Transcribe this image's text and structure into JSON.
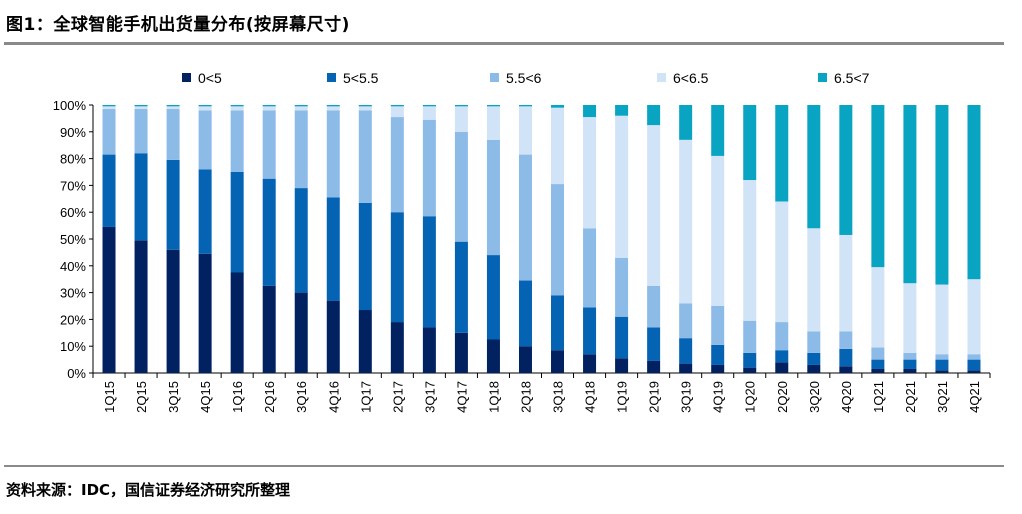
{
  "title": "图1：全球智能手机出货量分布(按屏幕尺寸)",
  "source": "资料来源：IDC，国信证券经济研究所整理",
  "chart_data": {
    "type": "bar",
    "stacked": true,
    "percent": true,
    "title": "图1：全球智能手机出货量分布(按屏幕尺寸)",
    "xlabel": "",
    "ylabel": "",
    "ylim": [
      0,
      100
    ],
    "yticks": [
      "0%",
      "10%",
      "20%",
      "30%",
      "40%",
      "50%",
      "60%",
      "70%",
      "80%",
      "90%",
      "100%"
    ],
    "legend_position": "top",
    "grid": false,
    "categories": [
      "1Q15",
      "2Q15",
      "3Q15",
      "4Q15",
      "1Q16",
      "2Q16",
      "3Q16",
      "4Q16",
      "1Q17",
      "2Q17",
      "3Q17",
      "4Q17",
      "1Q18",
      "2Q18",
      "3Q18",
      "4Q18",
      "1Q19",
      "2Q19",
      "3Q19",
      "4Q19",
      "1Q20",
      "2Q20",
      "3Q20",
      "4Q20",
      "1Q21",
      "2Q21",
      "3Q21",
      "4Q21"
    ],
    "series": [
      {
        "name": "0<5",
        "color": "#012160",
        "values": [
          54.5,
          49.5,
          46,
          44.5,
          37.5,
          32.5,
          30,
          27,
          23.5,
          19,
          17,
          15,
          12.5,
          10,
          8.5,
          7,
          5.5,
          4.5,
          3.5,
          3,
          2,
          4,
          3,
          2.5,
          1.5,
          1.5,
          1,
          1
        ]
      },
      {
        "name": "5<5.5",
        "color": "#0563b4",
        "values": [
          27,
          32.5,
          33.5,
          31.5,
          37.5,
          40,
          39,
          38.5,
          40,
          41,
          41.5,
          34,
          31.5,
          24.5,
          20.5,
          17.5,
          15.5,
          12.5,
          9.5,
          7.5,
          5.5,
          4.5,
          4.5,
          6.5,
          3.5,
          3.5,
          4,
          4
        ]
      },
      {
        "name": "5.5<6",
        "color": "#8dbbe7",
        "values": [
          17,
          16.5,
          19,
          22,
          23,
          25.5,
          29,
          32.5,
          34.5,
          35.5,
          36,
          41,
          43,
          47,
          41.5,
          29.5,
          22,
          15.5,
          13,
          14.5,
          12,
          10.5,
          8,
          6.5,
          4.5,
          2.5,
          2,
          2
        ]
      },
      {
        "name": "6<6.5",
        "color": "#d0e3f7",
        "values": [
          1,
          1,
          1,
          1.5,
          1.5,
          1.5,
          1.5,
          1.5,
          1.5,
          4,
          5,
          9.5,
          12.5,
          18,
          28.5,
          41.5,
          53,
          60,
          61,
          56,
          52.5,
          45,
          38.5,
          36,
          30,
          26,
          26,
          28
        ]
      },
      {
        "name": "6.5<7",
        "color": "#0aa4c3",
        "values": [
          0.5,
          0.5,
          0.5,
          0.5,
          0.5,
          0.5,
          0.5,
          0.5,
          0.5,
          0.5,
          0.5,
          0.5,
          0.5,
          0.5,
          1,
          4.5,
          4,
          7.5,
          13,
          19,
          28,
          36,
          46,
          48.5,
          60.5,
          66.5,
          67,
          65
        ]
      }
    ]
  }
}
